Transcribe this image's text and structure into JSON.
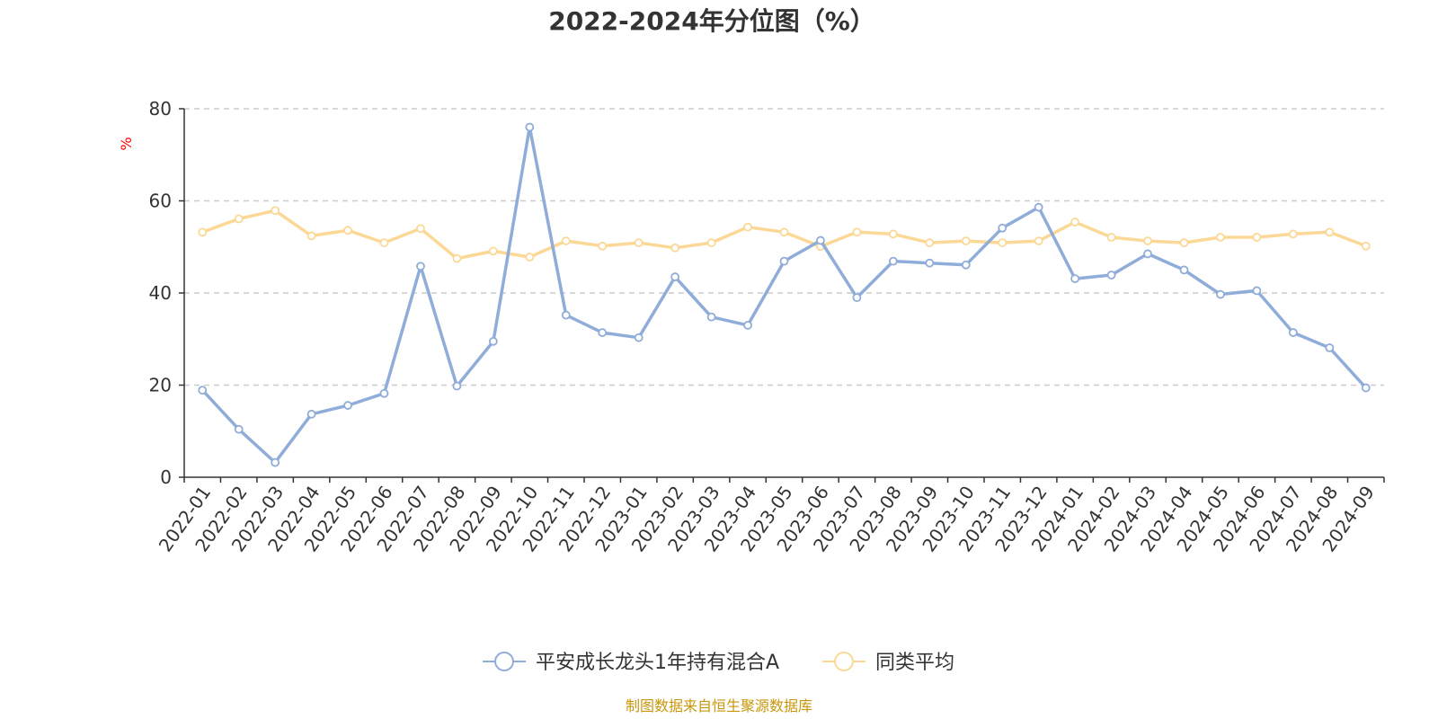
{
  "source_note": "制图数据来自恒生聚源数据库",
  "colors": {
    "series_1": "#8fadd8",
    "series_2": "#fbd896",
    "ylabel": "#ff0000",
    "source": "#c8960a",
    "grid": "#cccccc",
    "axis": "#333333"
  },
  "chart_data": {
    "type": "line",
    "title": "2022-2024年分位图（%）",
    "xlabel": "",
    "ylabel": "%",
    "ylim": [
      0,
      80
    ],
    "yticks": [
      0,
      20,
      40,
      60,
      80
    ],
    "grid": true,
    "legend_position": "bottom-center",
    "categories": [
      "2022-01",
      "2022-02",
      "2022-03",
      "2022-04",
      "2022-05",
      "2022-06",
      "2022-07",
      "2022-08",
      "2022-09",
      "2022-10",
      "2022-11",
      "2022-12",
      "2023-01",
      "2023-02",
      "2023-03",
      "2023-04",
      "2023-05",
      "2023-06",
      "2023-07",
      "2023-08",
      "2023-09",
      "2023-10",
      "2023-11",
      "2023-12",
      "2024-01",
      "2024-02",
      "2024-03",
      "2024-04",
      "2024-05",
      "2024-06",
      "2024-07",
      "2024-08",
      "2024-09"
    ],
    "series": [
      {
        "name": "平安成长龙头1年持有混合A",
        "values": [
          18.9,
          10.4,
          3.2,
          13.7,
          15.6,
          18.2,
          45.8,
          19.8,
          29.5,
          76.0,
          35.2,
          31.4,
          30.3,
          43.5,
          34.8,
          33.0,
          46.9,
          51.4,
          39.0,
          46.9,
          46.5,
          46.1,
          54.1,
          58.6,
          43.1,
          43.9,
          48.5,
          45.0,
          39.7,
          40.5,
          31.4,
          28.1,
          19.4
        ]
      },
      {
        "name": "同类平均",
        "values": [
          53.2,
          56.1,
          57.9,
          52.4,
          53.6,
          50.9,
          54.0,
          47.5,
          49.1,
          47.8,
          51.3,
          50.2,
          50.9,
          49.8,
          50.9,
          54.3,
          53.2,
          50.1,
          53.2,
          52.8,
          50.9,
          51.3,
          50.9,
          51.3,
          55.4,
          52.1,
          51.3,
          50.9,
          52.1,
          52.1,
          52.8,
          53.2,
          50.2
        ]
      }
    ]
  }
}
